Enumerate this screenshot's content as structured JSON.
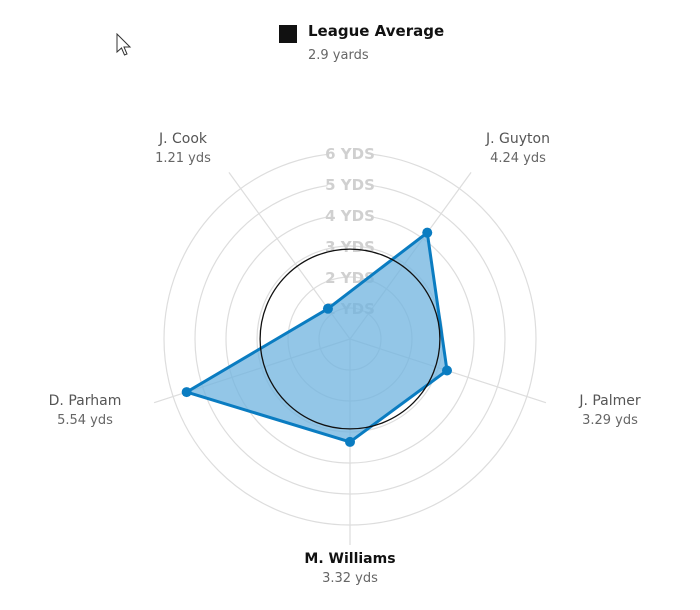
{
  "chart_data": {
    "type": "radar",
    "categories": [
      "M. Williams",
      "J. Palmer",
      "J. Guyton",
      "J. Cook",
      "D. Parham"
    ],
    "value_labels": [
      "3.32 yds",
      "3.29 yds",
      "4.24 yds",
      "1.21 yds",
      "5.54 yds"
    ],
    "values": [
      3.32,
      3.29,
      4.24,
      1.21,
      5.54
    ],
    "highlighted": "M. Williams",
    "rlim": [
      0,
      6
    ],
    "ring_labels": [
      "1 YDS",
      "2 YDS",
      "3 YDS",
      "4 YDS",
      "5 YDS",
      "6 YDS"
    ],
    "reference": {
      "name": "League Average",
      "value": 2.9,
      "value_label": "2.9 yards"
    },
    "colors": {
      "series": "#0a7cc1",
      "fill": "#6fb3df",
      "reference": "#111111",
      "grid": "#dddddd"
    }
  },
  "icons": {
    "cursor": "mouse-pointer-icon"
  }
}
